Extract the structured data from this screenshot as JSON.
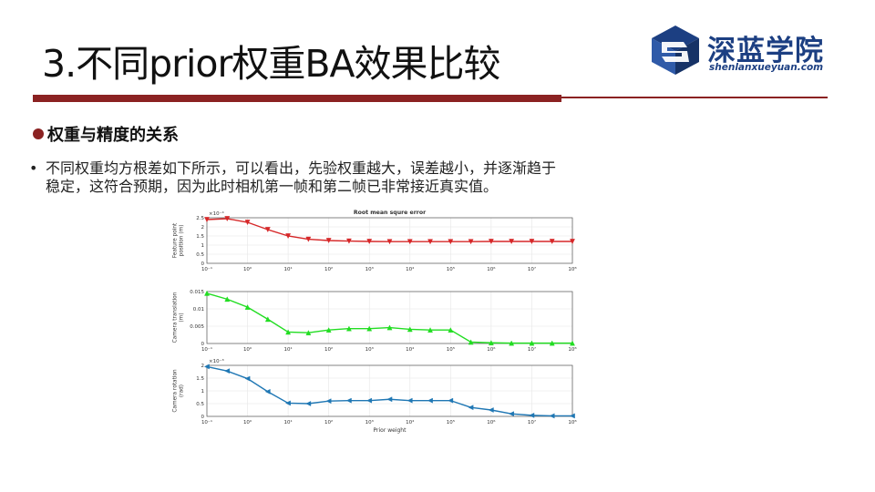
{
  "slide": {
    "title": "3.不同prior权重BA效果比较",
    "logo_cn": "深蓝学院",
    "logo_en": "shenlanxueyuan.com",
    "heading": "权重与精度的关系",
    "bullet_mark": "•",
    "bullet_line1": "不同权重均方根差如下所示，可以看出，先验权重越大，误差越小，并逐渐趋于",
    "bullet_line2": "稳定，这符合预期，因为此时相机第一帧和第二帧已非常接近真实值。",
    "colors": {
      "accent": "#8b2222",
      "logo": "#1c3f82"
    }
  },
  "chart_data": [
    {
      "type": "line",
      "title": "Root mean squre error",
      "xlabel": "",
      "ylabel": "Feature point position (m)",
      "y_multiplier": "×10⁻⁴",
      "xscale": "log",
      "xlim": [
        0.1,
        100000000
      ],
      "ylim": [
        0,
        2.5
      ],
      "yticks": [
        "0",
        "0.5",
        "1",
        "1.5",
        "2",
        "2.5"
      ],
      "xtick_labels": [
        "10⁻¹",
        "10⁰",
        "10¹",
        "10²",
        "10³",
        "10⁴",
        "10⁵",
        "10⁶",
        "10⁷",
        "10⁸"
      ],
      "marker": "down-triangle",
      "color": "#d62728",
      "x": [
        0.1,
        0.316,
        1,
        3.16,
        10,
        31.6,
        100,
        316,
        1000,
        3160,
        10000,
        31600,
        100000,
        316000,
        1000000,
        3160000,
        10000000,
        31600000,
        100000000
      ],
      "values": [
        2.4,
        2.45,
        2.25,
        1.85,
        1.5,
        1.32,
        1.25,
        1.22,
        1.2,
        1.19,
        1.19,
        1.19,
        1.19,
        1.19,
        1.2,
        1.2,
        1.2,
        1.2,
        1.2
      ]
    },
    {
      "type": "line",
      "title": "",
      "xlabel": "",
      "ylabel": "Camera translation (m)",
      "xscale": "log",
      "xlim": [
        0.1,
        100000000
      ],
      "ylim": [
        0,
        0.015
      ],
      "yticks": [
        "0",
        "0.005",
        "0.01",
        "0.015"
      ],
      "xtick_labels": [
        "10⁻¹",
        "10⁰",
        "10¹",
        "10²",
        "10³",
        "10⁴",
        "10⁵",
        "10⁶",
        "10⁷",
        "10⁸"
      ],
      "marker": "up-triangle",
      "color": "#22dd22",
      "x": [
        0.1,
        0.316,
        1,
        3.16,
        10,
        31.6,
        100,
        316,
        1000,
        3160,
        10000,
        31600,
        100000,
        316000,
        1000000,
        3160000,
        10000000,
        31600000,
        100000000
      ],
      "values": [
        0.0145,
        0.0128,
        0.0105,
        0.007,
        0.0033,
        0.0031,
        0.0039,
        0.0043,
        0.0043,
        0.0046,
        0.0041,
        0.0039,
        0.0039,
        0.0004,
        0.0002,
        0.0001,
        0.0001,
        0.0001,
        0.0001
      ]
    },
    {
      "type": "line",
      "title": "",
      "xlabel": "Prior weight",
      "ylabel": "Camera rotation (rad)",
      "y_multiplier": "×10⁻³",
      "xscale": "log",
      "xlim": [
        0.1,
        100000000
      ],
      "ylim": [
        0,
        2
      ],
      "yticks": [
        "0",
        "0.5",
        "1",
        "1.5",
        "2"
      ],
      "xtick_labels": [
        "10⁻¹",
        "10⁰",
        "10¹",
        "10²",
        "10³",
        "10⁴",
        "10⁵",
        "10⁶",
        "10⁷",
        "10⁸"
      ],
      "marker": "left-triangle",
      "color": "#1f77b4",
      "x": [
        0.1,
        0.316,
        1,
        3.16,
        10,
        31.6,
        100,
        316,
        1000,
        3160,
        10000,
        31600,
        100000,
        316000,
        1000000,
        3160000,
        10000000,
        31600000,
        100000000
      ],
      "values": [
        1.95,
        1.78,
        1.48,
        0.97,
        0.52,
        0.5,
        0.6,
        0.62,
        0.62,
        0.67,
        0.62,
        0.62,
        0.62,
        0.35,
        0.25,
        0.1,
        0.04,
        0.02,
        0.02
      ]
    }
  ]
}
